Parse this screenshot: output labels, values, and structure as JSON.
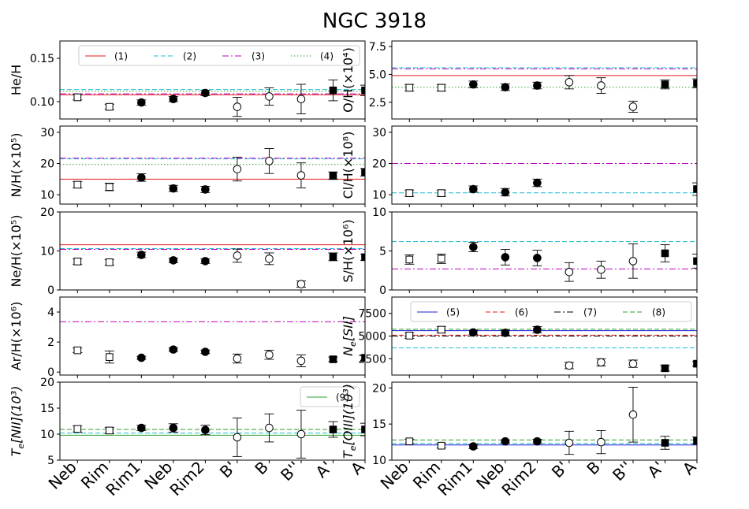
{
  "figure_title": "NGC 3918",
  "legend_labels": {
    "l1": "(1)",
    "l2": "(2)",
    "l3": "(3)",
    "l4": "(4)",
    "l5": "(5)",
    "l6": "(6)",
    "l7": "(7)",
    "l8": "(8)",
    "l9": "(9)"
  },
  "colors": {
    "ref1": "#e41a1c",
    "ref2": "#17becf",
    "ref3": "#c000c0",
    "ref4": "#2ca02c",
    "ref5": "#1f1fd6",
    "ref6": "#e41a1c",
    "ref7": "#000000",
    "ref8": "#2ca02c",
    "ref9": "#2ca02c"
  },
  "chart_data": [
    {
      "id": "heh",
      "type": "scatter",
      "ylabel": "He/H",
      "categories": [
        "Neb",
        "Rim",
        "Rim1",
        "Neb",
        "Rim2",
        "B'",
        "B",
        "B''",
        "A'",
        "A"
      ],
      "ylim": [
        0.08,
        0.17
      ],
      "yticks": [
        0.1,
        0.15
      ],
      "ytick_labels": [
        "0.10",
        "0.15"
      ],
      "points": [
        {
          "y": 0.105,
          "err": 0.003,
          "marker": "sq-open"
        },
        {
          "y": 0.094,
          "err": 0.003,
          "marker": "sq-open"
        },
        {
          "y": 0.099,
          "err": 0.003,
          "marker": "circ-filled"
        },
        {
          "y": 0.103,
          "err": 0.003,
          "marker": "circ-filled"
        },
        {
          "y": 0.11,
          "err": 0.003,
          "marker": "circ-filled"
        },
        {
          "y": 0.094,
          "err": 0.011,
          "marker": "circ-open"
        },
        {
          "y": 0.106,
          "err": 0.01,
          "marker": "circ-open"
        },
        {
          "y": 0.103,
          "err": 0.017,
          "marker": "circ-open"
        },
        {
          "y": 0.113,
          "err": 0.012,
          "marker": "sq-filled"
        },
        {
          "y": 0.113,
          "err": 0.006,
          "marker": "sq-filled"
        }
      ],
      "hlines": [
        {
          "ref": "ref1",
          "y": 0.108
        },
        {
          "ref": "ref2",
          "y": 0.114
        },
        {
          "ref": "ref3",
          "y": 0.109
        },
        {
          "ref": "ref4",
          "y": 0.112
        }
      ],
      "legend": [
        "l1",
        "l2",
        "l3",
        "l4"
      ],
      "legend_pos": "top-right"
    },
    {
      "id": "oh",
      "type": "scatter",
      "ylabel": "O/H(×10⁴)",
      "categories": [
        "Neb",
        "Rim",
        "Rim1",
        "Neb",
        "Rim2",
        "B'",
        "B",
        "B''",
        "A'",
        "A"
      ],
      "ylim": [
        1.0,
        8.0
      ],
      "yticks": [
        2.5,
        5.0,
        7.5
      ],
      "ytick_labels": [
        "2.5",
        "5.0",
        "7.5"
      ],
      "points": [
        {
          "y": 3.8,
          "err": 0.3,
          "marker": "sq-open"
        },
        {
          "y": 3.8,
          "err": 0.3,
          "marker": "sq-open"
        },
        {
          "y": 4.1,
          "err": 0.3,
          "marker": "circ-filled"
        },
        {
          "y": 3.85,
          "err": 0.3,
          "marker": "circ-filled"
        },
        {
          "y": 4.0,
          "err": 0.3,
          "marker": "circ-filled"
        },
        {
          "y": 4.3,
          "err": 0.6,
          "marker": "circ-open"
        },
        {
          "y": 4.0,
          "err": 0.7,
          "marker": "circ-open"
        },
        {
          "y": 2.1,
          "err": 0.5,
          "marker": "circ-open"
        },
        {
          "y": 4.1,
          "err": 0.4,
          "marker": "sq-filled"
        },
        {
          "y": 4.2,
          "err": 0.4,
          "marker": "sq-filled"
        }
      ],
      "hlines": [
        {
          "ref": "ref1",
          "y": 4.9
        },
        {
          "ref": "ref2",
          "y": 5.6
        },
        {
          "ref": "ref3",
          "y": 5.5
        },
        {
          "ref": "ref4",
          "y": 3.85
        }
      ]
    },
    {
      "id": "nh",
      "type": "scatter",
      "ylabel": "N/H(×10⁵)",
      "categories": [
        "Neb",
        "Rim",
        "Rim1",
        "Neb",
        "Rim2",
        "B'",
        "B",
        "B''",
        "A'",
        "A"
      ],
      "ylim": [
        7,
        32
      ],
      "yticks": [
        10,
        20,
        30
      ],
      "ytick_labels": [
        "10",
        "20",
        "30"
      ],
      "points": [
        {
          "y": 13.2,
          "err": 1.0,
          "marker": "sq-open"
        },
        {
          "y": 12.5,
          "err": 1.2,
          "marker": "sq-open"
        },
        {
          "y": 15.5,
          "err": 1.2,
          "marker": "circ-filled"
        },
        {
          "y": 12.0,
          "err": 1.0,
          "marker": "circ-filled"
        },
        {
          "y": 11.7,
          "err": 1.0,
          "marker": "circ-filled"
        },
        {
          "y": 18.2,
          "err": 3.8,
          "marker": "circ-open"
        },
        {
          "y": 20.8,
          "err": 4.0,
          "marker": "circ-open"
        },
        {
          "y": 16.2,
          "err": 4.0,
          "marker": "circ-open"
        },
        {
          "y": 16.1,
          "err": 1.2,
          "marker": "sq-filled"
        },
        {
          "y": 17.2,
          "err": 1.2,
          "marker": "sq-filled"
        }
      ],
      "hlines": [
        {
          "ref": "ref1",
          "y": 15.0
        },
        {
          "ref": "ref2",
          "y": 21.5
        },
        {
          "ref": "ref3",
          "y": 21.7
        },
        {
          "ref": "ref4",
          "y": 19.7
        }
      ]
    },
    {
      "id": "clh",
      "type": "scatter",
      "ylabel": "Cl/H(×10⁸)",
      "categories": [
        "Neb",
        "Rim",
        "Rim1",
        "Neb",
        "Rim2",
        "B'",
        "B",
        "B''",
        "A'",
        "A"
      ],
      "ylim": [
        7,
        32
      ],
      "yticks": [
        10,
        20,
        30
      ],
      "ytick_labels": [
        "10",
        "20",
        "30"
      ],
      "points": [
        {
          "y": 10.5,
          "err": 1.0,
          "marker": "sq-open"
        },
        {
          "y": 10.5,
          "err": 1.0,
          "marker": "sq-open"
        },
        {
          "y": 11.8,
          "err": 1.0,
          "marker": "circ-filled"
        },
        {
          "y": 10.8,
          "err": 1.2,
          "marker": "circ-filled"
        },
        {
          "y": 13.8,
          "err": 1.2,
          "marker": "circ-filled"
        },
        null,
        null,
        null,
        null,
        {
          "y": 11.8,
          "err": 2.0,
          "marker": "sq-filled"
        }
      ],
      "hlines": [
        {
          "ref": "ref2",
          "y": 10.6
        },
        {
          "ref": "ref3",
          "y": 20.0
        }
      ]
    },
    {
      "id": "neh",
      "type": "scatter",
      "ylabel": "Ne/H(×10⁵)",
      "categories": [
        "Neb",
        "Rim",
        "Rim1",
        "Neb",
        "Rim2",
        "B'",
        "B",
        "B''",
        "A'",
        "A"
      ],
      "ylim": [
        0,
        20
      ],
      "yticks": [
        0,
        10,
        20
      ],
      "ytick_labels": [
        "0",
        "10",
        "20"
      ],
      "points": [
        {
          "y": 7.3,
          "err": 0.7,
          "marker": "sq-open"
        },
        {
          "y": 7.1,
          "err": 0.7,
          "marker": "sq-open"
        },
        {
          "y": 9.0,
          "err": 0.7,
          "marker": "circ-filled"
        },
        {
          "y": 7.6,
          "err": 0.6,
          "marker": "circ-filled"
        },
        {
          "y": 7.4,
          "err": 0.6,
          "marker": "circ-filled"
        },
        {
          "y": 8.8,
          "err": 1.7,
          "marker": "circ-open"
        },
        {
          "y": 8.0,
          "err": 1.5,
          "marker": "circ-open"
        },
        {
          "y": 1.5,
          "err": 0.8,
          "marker": "circ-open"
        },
        {
          "y": 8.5,
          "err": 1.0,
          "marker": "sq-filled"
        },
        {
          "y": 8.4,
          "err": 0.8,
          "marker": "sq-filled"
        }
      ],
      "hlines": [
        {
          "ref": "ref1",
          "y": 11.6
        },
        {
          "ref": "ref2",
          "y": 10.6
        },
        {
          "ref": "ref3",
          "y": 10.4
        }
      ]
    },
    {
      "id": "sh",
      "type": "scatter",
      "ylabel": "S/H(×10⁶)",
      "categories": [
        "Neb",
        "Rim",
        "Rim1",
        "Neb",
        "Rim2",
        "B'",
        "B",
        "B''",
        "A'",
        "A"
      ],
      "ylim": [
        0,
        10
      ],
      "yticks": [
        0,
        5,
        10
      ],
      "ytick_labels": [
        "0",
        "5",
        "10"
      ],
      "points": [
        {
          "y": 3.9,
          "err": 0.6,
          "marker": "sq-open"
        },
        {
          "y": 4.0,
          "err": 0.6,
          "marker": "sq-open"
        },
        {
          "y": 5.5,
          "err": 0.6,
          "marker": "circ-filled"
        },
        {
          "y": 4.2,
          "err": 1.0,
          "marker": "circ-filled"
        },
        {
          "y": 4.1,
          "err": 1.0,
          "marker": "circ-filled"
        },
        {
          "y": 2.3,
          "err": 1.2,
          "marker": "circ-open"
        },
        {
          "y": 2.6,
          "err": 1.1,
          "marker": "circ-open"
        },
        {
          "y": 3.7,
          "err": 2.2,
          "marker": "circ-open"
        },
        {
          "y": 4.7,
          "err": 1.1,
          "marker": "sq-filled"
        },
        {
          "y": 3.7,
          "err": 0.9,
          "marker": "sq-filled"
        }
      ],
      "hlines": [
        {
          "ref": "ref2",
          "y": 6.2
        },
        {
          "ref": "ref3",
          "y": 2.7
        }
      ]
    },
    {
      "id": "arh",
      "type": "scatter",
      "ylabel": "Ar/H(×10⁶)",
      "categories": [
        "Neb",
        "Rim",
        "Rim1",
        "Neb",
        "Rim2",
        "B'",
        "B",
        "B''",
        "A'",
        "A"
      ],
      "ylim": [
        -0.2,
        5.0
      ],
      "yticks": [
        0,
        2,
        4
      ],
      "ytick_labels": [
        "0",
        "2",
        "4"
      ],
      "points": [
        {
          "y": 1.45,
          "err": 0.15,
          "marker": "sq-open"
        },
        {
          "y": 1.0,
          "err": 0.4,
          "marker": "sq-open"
        },
        {
          "y": 0.95,
          "err": 0.1,
          "marker": "circ-filled"
        },
        {
          "y": 1.5,
          "err": 0.12,
          "marker": "circ-filled"
        },
        {
          "y": 1.35,
          "err": 0.12,
          "marker": "circ-filled"
        },
        {
          "y": 0.9,
          "err": 0.3,
          "marker": "circ-open"
        },
        {
          "y": 1.15,
          "err": 0.3,
          "marker": "circ-open"
        },
        {
          "y": 0.75,
          "err": 0.4,
          "marker": "circ-open"
        },
        {
          "y": 0.85,
          "err": 0.15,
          "marker": "sq-filled"
        },
        {
          "y": 0.95,
          "err": 0.15,
          "marker": "sq-filled"
        }
      ],
      "hlines": [
        {
          "ref": "ref3",
          "y": 3.35
        }
      ]
    },
    {
      "id": "ne",
      "type": "scatter",
      "ylabel": "N_e[SII]",
      "categories": [
        "Neb",
        "Rim",
        "Rim1",
        "Neb",
        "Rim2",
        "B'",
        "B",
        "B''",
        "A'",
        "A"
      ],
      "ylim": [
        700,
        9300
      ],
      "yticks": [
        2500,
        5000,
        7500
      ],
      "ytick_labels": [
        "2500",
        "5000",
        "7500"
      ],
      "points": [
        {
          "y": 5050,
          "err": 300,
          "marker": "sq-open"
        },
        {
          "y": 5700,
          "err": 350,
          "marker": "sq-open"
        },
        {
          "y": 5400,
          "err": 250,
          "marker": "circ-filled"
        },
        {
          "y": 5350,
          "err": 300,
          "marker": "circ-filled"
        },
        {
          "y": 5700,
          "err": 350,
          "marker": "circ-filled"
        },
        {
          "y": 1750,
          "err": 350,
          "marker": "circ-open"
        },
        {
          "y": 2100,
          "err": 400,
          "marker": "circ-open"
        },
        {
          "y": 1950,
          "err": 400,
          "marker": "circ-open"
        },
        {
          "y": 1450,
          "err": 300,
          "marker": "sq-filled"
        },
        {
          "y": 1950,
          "err": 250,
          "marker": "sq-filled"
        }
      ],
      "hlines": [
        {
          "ref": "ref5",
          "y": 5600
        },
        {
          "ref": "ref6",
          "y": 5100
        },
        {
          "ref": "ref7",
          "y": 5000
        },
        {
          "ref": "ref8",
          "y": 5750
        },
        {
          "ref": "ref2",
          "y": 3700
        }
      ],
      "legend": [
        "l5",
        "l6",
        "l7",
        "l8"
      ],
      "legend_pos": "top-right"
    },
    {
      "id": "teN",
      "type": "scatter",
      "ylabel": "T_e[NII](10³)",
      "categories": [
        "Neb",
        "Rim",
        "Rim1",
        "Neb",
        "Rim2",
        "B'",
        "B",
        "B''",
        "A'",
        "A"
      ],
      "ylim": [
        5,
        20
      ],
      "yticks": [
        5,
        10,
        15,
        20
      ],
      "ytick_labels": [
        "5",
        "10",
        "15",
        "20"
      ],
      "points": [
        {
          "y": 11.0,
          "err": 0.6,
          "marker": "sq-open"
        },
        {
          "y": 10.7,
          "err": 0.6,
          "marker": "sq-open"
        },
        {
          "y": 11.2,
          "err": 0.5,
          "marker": "circ-filled"
        },
        {
          "y": 11.2,
          "err": 0.8,
          "marker": "circ-filled"
        },
        {
          "y": 10.8,
          "err": 0.9,
          "marker": "circ-filled"
        },
        {
          "y": 9.4,
          "err": 3.7,
          "marker": "circ-open"
        },
        {
          "y": 11.2,
          "err": 2.7,
          "marker": "circ-open"
        },
        {
          "y": 10.0,
          "err": 4.6,
          "marker": "circ-open"
        },
        {
          "y": 10.9,
          "err": 1.5,
          "marker": "sq-filled"
        },
        {
          "y": 10.9,
          "err": 1.2,
          "marker": "sq-filled"
        }
      ],
      "hlines": [
        {
          "ref": "ref9",
          "y": 9.8
        },
        {
          "ref": "ref2",
          "y": 10.2
        },
        {
          "ref": "ref8",
          "y": 10.9
        }
      ],
      "legend": [
        "l9"
      ],
      "legend_pos": "top-right"
    },
    {
      "id": "teO",
      "type": "scatter",
      "ylabel": "T_e[OIII](10³)",
      "categories": [
        "Neb",
        "Rim",
        "Rim1",
        "Neb",
        "Rim2",
        "B'",
        "B",
        "B''",
        "A'",
        "A"
      ],
      "ylim": [
        10,
        20.8
      ],
      "yticks": [
        10,
        15,
        20
      ],
      "ytick_labels": [
        "10",
        "15",
        "20"
      ],
      "points": [
        {
          "y": 12.6,
          "err": 0.3,
          "marker": "sq-open"
        },
        {
          "y": 12.0,
          "err": 0.3,
          "marker": "sq-open"
        },
        {
          "y": 11.9,
          "err": 0.3,
          "marker": "circ-filled"
        },
        {
          "y": 12.6,
          "err": 0.2,
          "marker": "circ-filled"
        },
        {
          "y": 12.6,
          "err": 0.3,
          "marker": "circ-filled"
        },
        {
          "y": 12.4,
          "err": 1.6,
          "marker": "circ-open"
        },
        {
          "y": 12.5,
          "err": 1.6,
          "marker": "circ-open"
        },
        {
          "y": 16.3,
          "err": 3.8,
          "marker": "circ-open"
        },
        {
          "y": 12.4,
          "err": 0.9,
          "marker": "sq-filled"
        },
        {
          "y": 12.7,
          "err": 0.5,
          "marker": "sq-filled"
        }
      ],
      "hlines": [
        {
          "ref": "ref5",
          "y": 12.1
        },
        {
          "ref": "ref2",
          "y": 12.3
        },
        {
          "ref": "ref8",
          "y": 12.8
        }
      ]
    }
  ]
}
